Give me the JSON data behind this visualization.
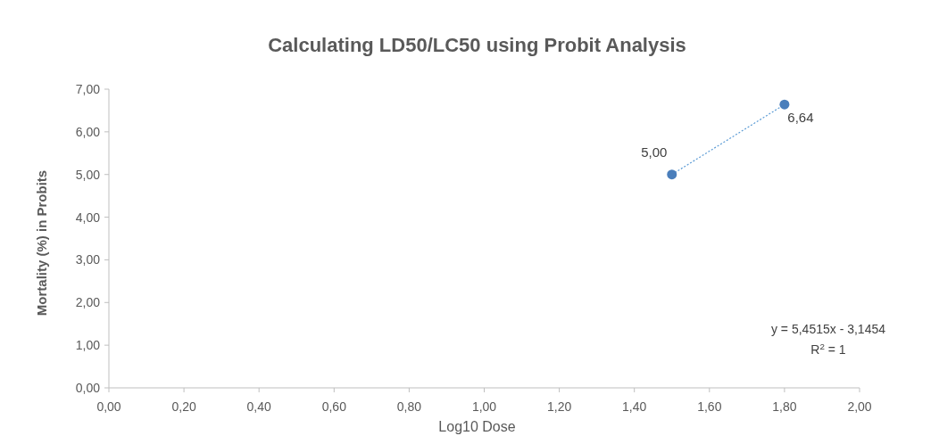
{
  "chart_data": {
    "type": "scatter",
    "title": "Calculating LD50/LC50 using Probit Analysis",
    "xlabel": "Log10 Dose",
    "ylabel": "Mortality (%) in Probits",
    "xlim": [
      0,
      2
    ],
    "ylim": [
      0,
      7
    ],
    "xticks": [
      {
        "value": 0,
        "label": "0,00"
      },
      {
        "value": 0.2,
        "label": "0,20"
      },
      {
        "value": 0.4,
        "label": "0,40"
      },
      {
        "value": 0.6,
        "label": "0,60"
      },
      {
        "value": 0.8,
        "label": "0,80"
      },
      {
        "value": 1,
        "label": "1,00"
      },
      {
        "value": 1.2,
        "label": "1,20"
      },
      {
        "value": 1.4,
        "label": "1,40"
      },
      {
        "value": 1.6,
        "label": "1,60"
      },
      {
        "value": 1.8,
        "label": "1,80"
      },
      {
        "value": 2,
        "label": "2,00"
      }
    ],
    "yticks": [
      {
        "value": 0,
        "label": "0,00"
      },
      {
        "value": 1,
        "label": "1,00"
      },
      {
        "value": 2,
        "label": "2,00"
      },
      {
        "value": 3,
        "label": "3,00"
      },
      {
        "value": 4,
        "label": "4,00"
      },
      {
        "value": 5,
        "label": "5,00"
      },
      {
        "value": 6,
        "label": "6,00"
      },
      {
        "value": 7,
        "label": "7,00"
      }
    ],
    "grid": false,
    "x": [
      1.5,
      1.8
    ],
    "series": [
      {
        "color": "#4a7ebb",
        "marker": "circle",
        "values": [
          5.0,
          6.64
        ],
        "value_labels": [
          "5,00",
          "6,64"
        ]
      },
      {
        "type": "line",
        "color": "#5b9bd5",
        "line_style": "dotted",
        "values": [
          5.0,
          6.64
        ]
      }
    ],
    "annotations": [
      "y = 5,4515x - 3,1454",
      "R$^{2}$ = 1"
    ]
  }
}
